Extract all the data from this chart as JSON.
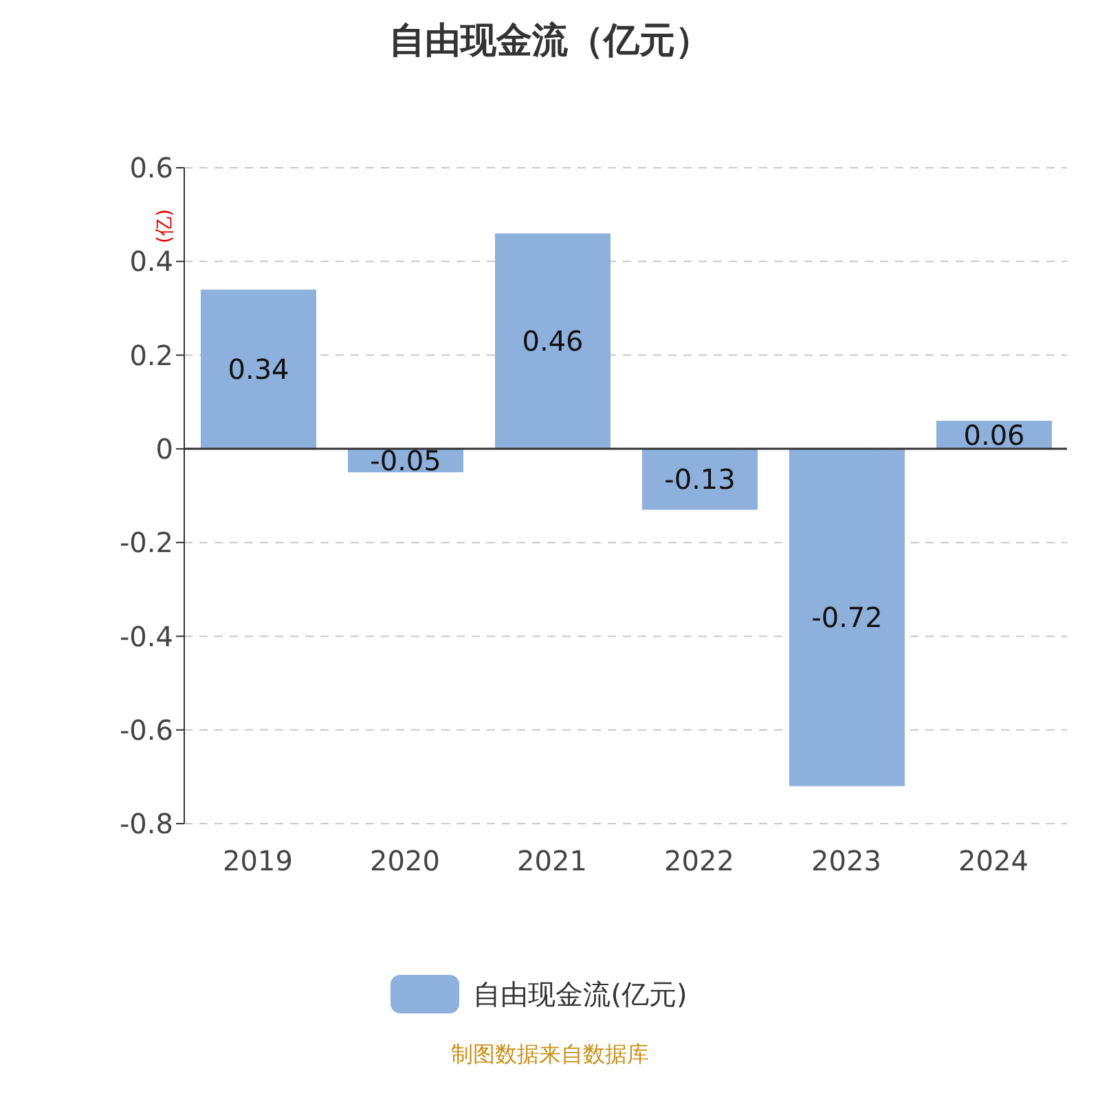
{
  "chart_data": {
    "type": "bar",
    "title": "自由现金流（亿元）",
    "ylabel": "(亿)",
    "categories": [
      "2019",
      "2020",
      "2021",
      "2022",
      "2023",
      "2024"
    ],
    "series": [
      {
        "name": "自由现金流(亿元)",
        "color": "#8eb0dc",
        "values": [
          0.34,
          -0.05,
          0.46,
          -0.13,
          -0.72,
          0.06
        ]
      }
    ],
    "ylim": [
      -0.8,
      0.6
    ],
    "yticks": [
      -0.8,
      -0.6,
      -0.4,
      -0.2,
      0,
      0.2,
      0.4,
      0.6
    ],
    "grid": "y",
    "legend": "bottom",
    "data_labels": true,
    "annotations": [
      "制图数据来自数据库"
    ]
  }
}
